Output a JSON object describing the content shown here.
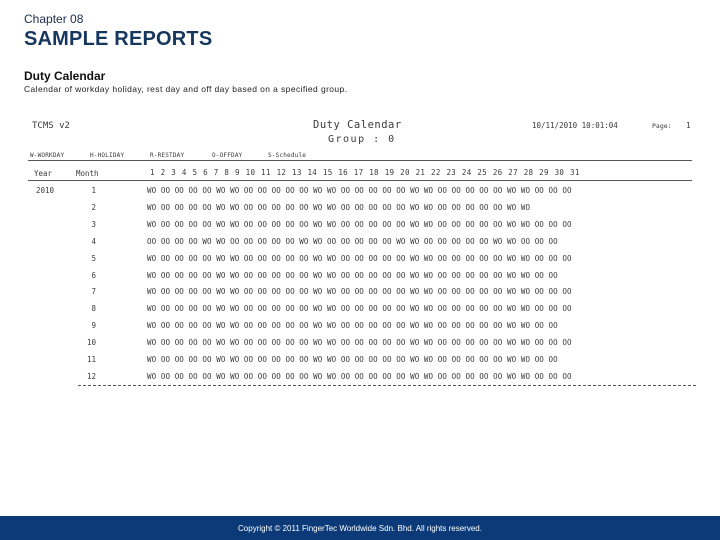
{
  "header": {
    "chapter": "Chapter 08",
    "title": "SAMPLE REPORTS"
  },
  "section": {
    "title": "Duty Calendar",
    "description": "Calendar of workday holiday, rest day and off day based on a specified group."
  },
  "report": {
    "id": "TCMS v2",
    "name": "Duty Calendar",
    "group": "Group : 0",
    "date": "10/11/2010 10:01:04",
    "page_label": "Page:",
    "page_value": "1",
    "legend": [
      "W-WORKDAY",
      "H-HOLIDAY",
      "R-RESTDAY",
      "O-OFFDAY",
      "S-Schedule"
    ],
    "year_label": "Year",
    "month_label": "Month",
    "day_numbers": "1  2  3  4  5  6  7  8  9  10 11 12 13 14 15 16 17 18 19 20 21 22 23 24 25 26 27 28 29 30 31",
    "rows": [
      {
        "year": "2010",
        "month": "1",
        "codes": "WO OO OO OO OO WO WO OO OO OO OO OO WO WO OO OO OO OO OO WO WO OO OO OO OO OO WO WO OO OO OO"
      },
      {
        "year": "",
        "month": "2",
        "codes": "WO OO OO OO OO WO WO OO OO OO OO OO WO WO OO OO OO OO OO WO WO OO OO OO OO OO WO WO"
      },
      {
        "year": "",
        "month": "3",
        "codes": "WO OO OO OO OO WO WO OO OO OO OO OO WO WO OO OO OO OO OO WO WO OO OO OO OO OO WO WO OO OO OO"
      },
      {
        "year": "",
        "month": "4",
        "codes": "OO OO OO OO WO WO OO OO OO OO OO WO WO OO OO OO OO OO WO WO OO OO OO OO OO WO WO OO OO OO"
      },
      {
        "year": "",
        "month": "5",
        "codes": "WO OO OO OO OO WO WO OO OO OO OO OO WO WO OO OO OO OO OO WO WO OO OO OO OO OO WO WO OO OO OO"
      },
      {
        "year": "",
        "month": "6",
        "codes": "WO OO OO OO OO WO WO OO OO OO OO OO WO WO OO OO OO OO OO WO WO OO OO OO OO OO WO WO OO OO"
      },
      {
        "year": "",
        "month": "7",
        "codes": "WO OO OO OO OO WO WO OO OO OO OO OO WO WO OO OO OO OO OO WO WO OO OO OO OO OO WO WO OO OO OO"
      },
      {
        "year": "",
        "month": "8",
        "codes": "WO OO OO OO OO WO WO OO OO OO OO OO WO WO OO OO OO OO OO WO WO OO OO OO OO OO WO WO OO OO OO"
      },
      {
        "year": "",
        "month": "9",
        "codes": "WO OO OO OO OO WO WO OO OO OO OO OO WO WO OO OO OO OO OO WO WO OO OO OO OO OO WO WO OO OO"
      },
      {
        "year": "",
        "month": "10",
        "codes": "WO OO OO OO OO WO WO OO OO OO OO OO WO WO OO OO OO OO OO WO WO OO OO OO OO OO WO WO OO OO OO"
      },
      {
        "year": "",
        "month": "11",
        "codes": "WO OO OO OO OO WO WO OO OO OO OO OO WO WO OO OO OO OO OO WO WO OO OO OO OO OO WO WO OO OO"
      },
      {
        "year": "",
        "month": "12",
        "codes": "WO OO OO OO OO WO WO OO OO OO OO OO WO WO OO OO OO OO OO WO WO OO OO OO OO OO WO WO OO OO OO"
      }
    ]
  },
  "footer": {
    "text": "Copyright © 2011 FingerTec Worldwide Sdn. Bhd. All rights reserved."
  },
  "colors": {
    "title": "#17365d",
    "footer_bg": "#0c3a78"
  }
}
